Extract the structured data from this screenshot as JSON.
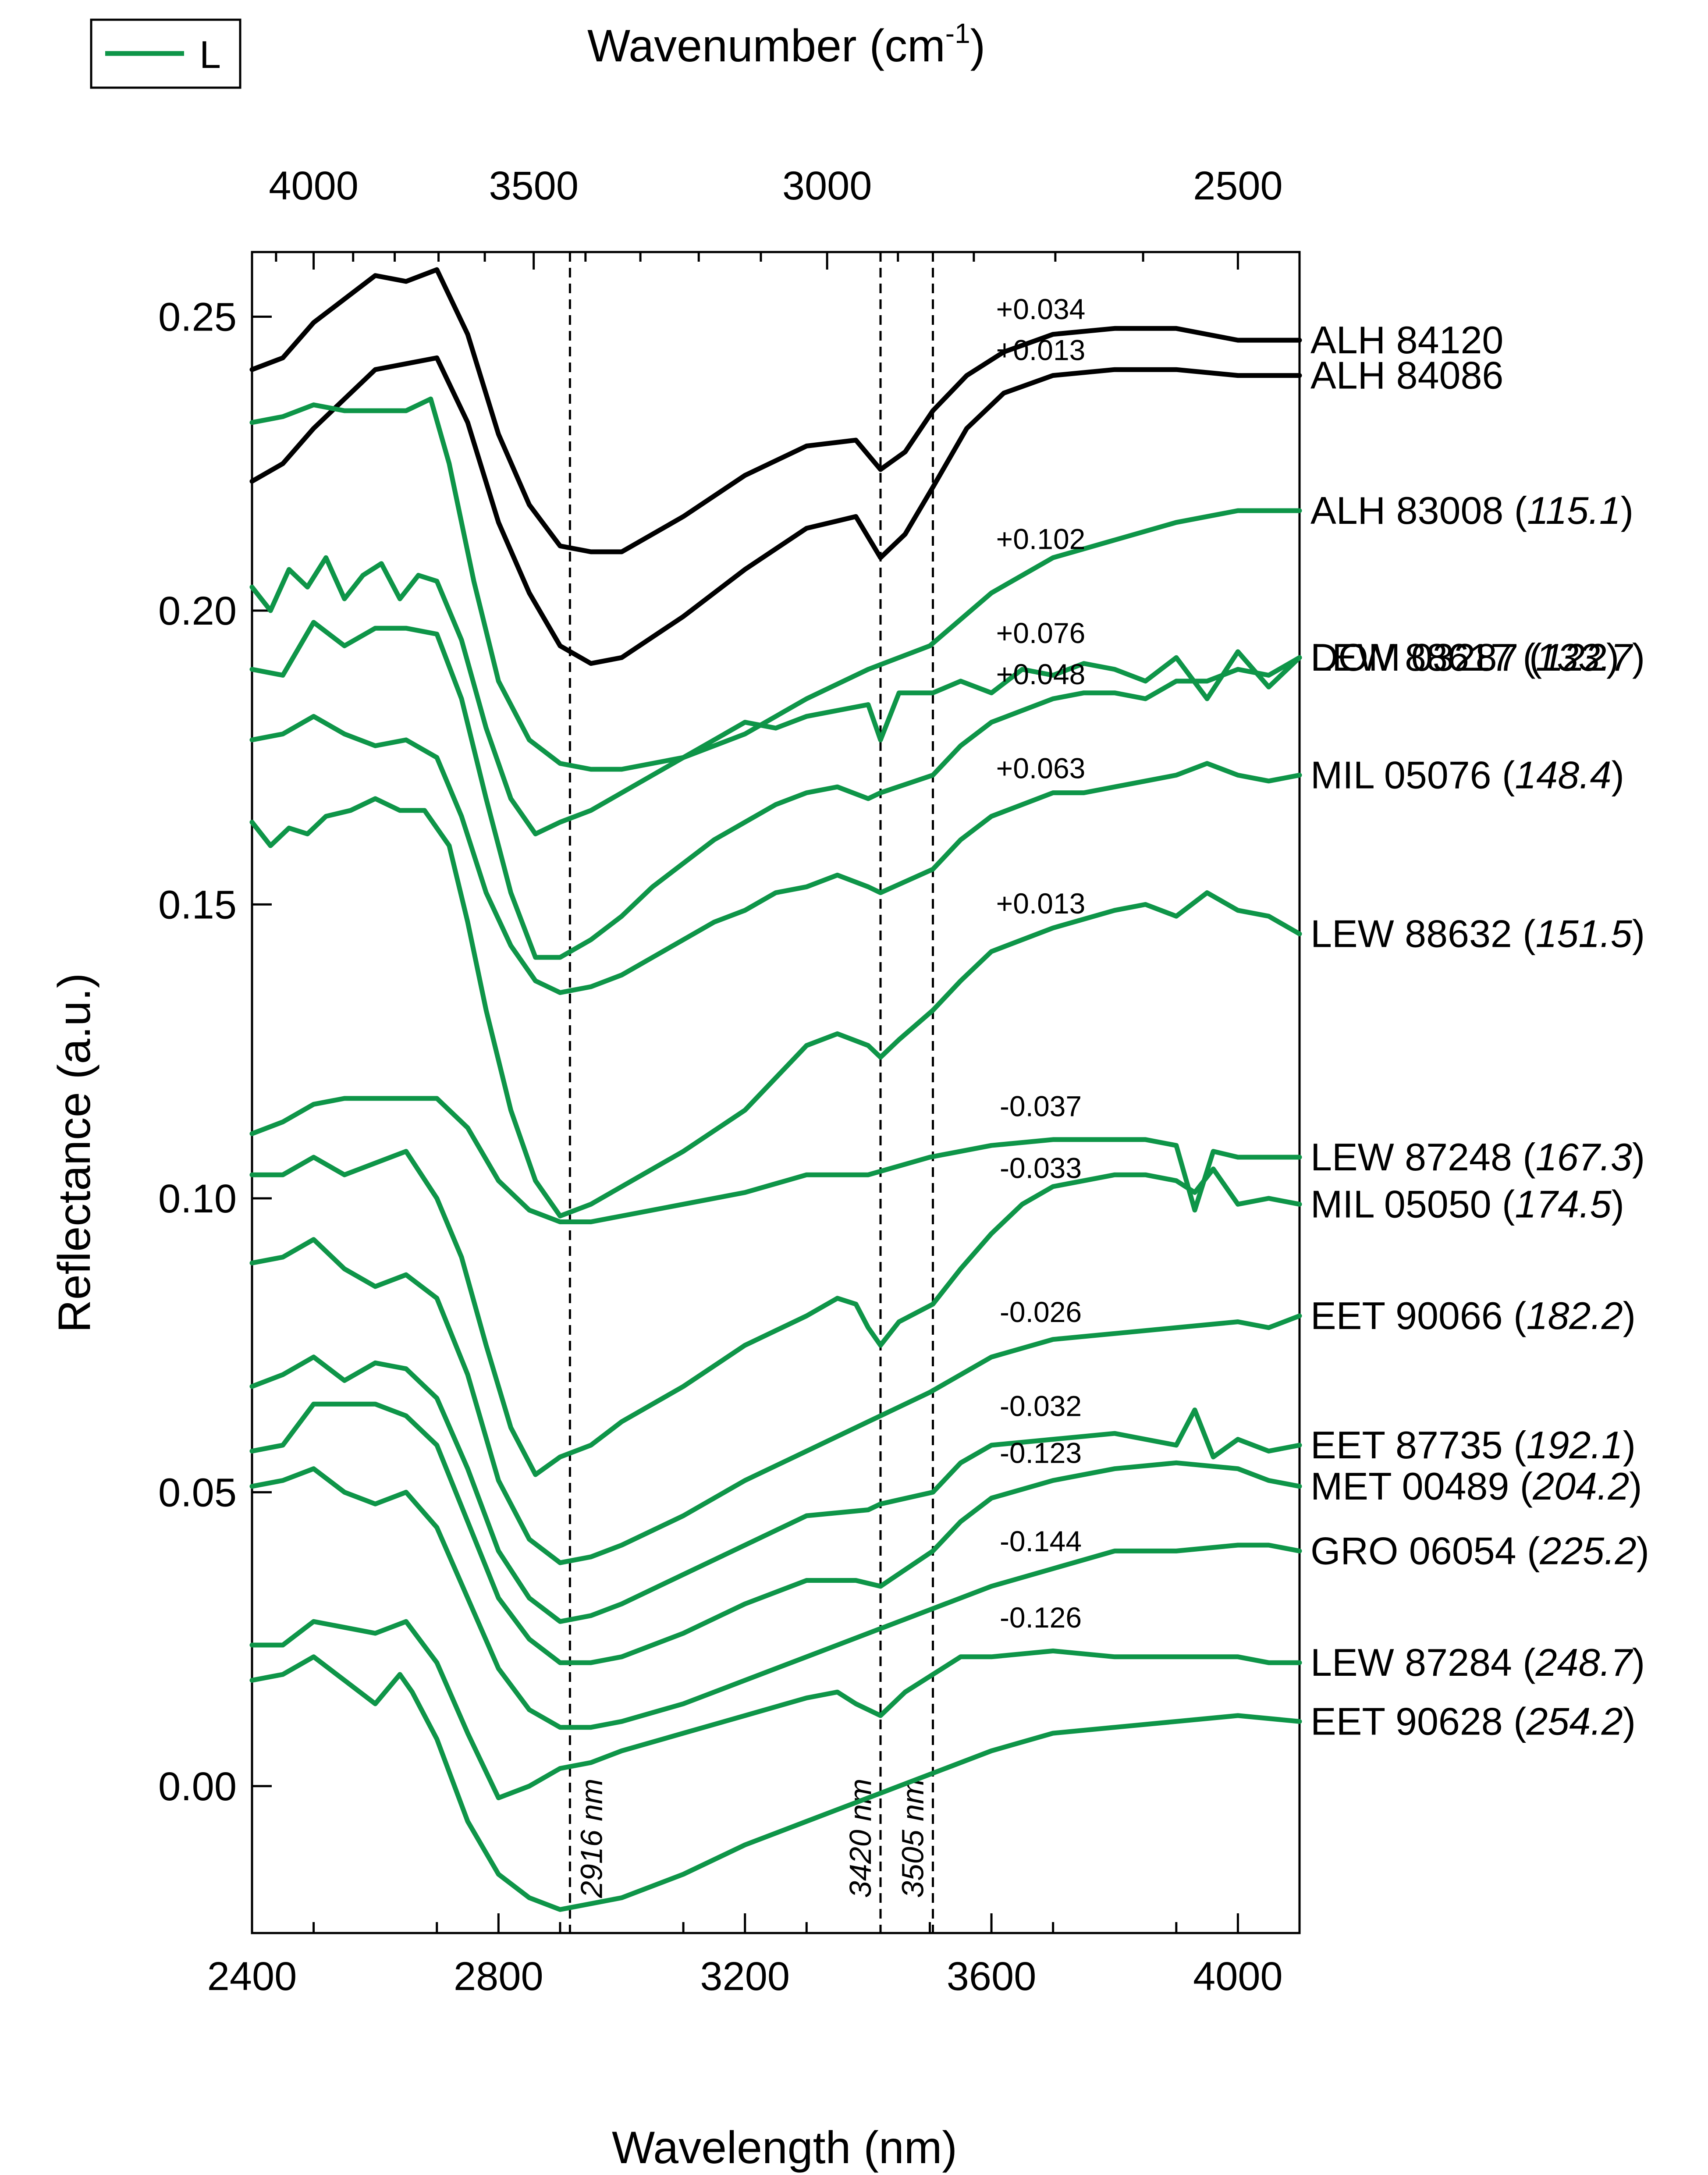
{
  "chart_data": {
    "type": "line",
    "title": "",
    "xlabel": "Wavelength (nm)",
    "ylabel": "Reflectance (a.u.)",
    "top_axis_label": "Wavenumber (cm",
    "top_axis_label_sup": "-1",
    "top_axis_label_end": ")",
    "xlim": [
      2400,
      4100
    ],
    "ylim": [
      -0.025,
      0.261
    ],
    "x_ticks": [
      2400,
      2800,
      3200,
      3600,
      4000
    ],
    "x_tick_labels": [
      "2400",
      "2800",
      "3200",
      "3600",
      "4000"
    ],
    "y_ticks": [
      0.0,
      0.05,
      0.1,
      0.15,
      0.2,
      0.25
    ],
    "y_tick_labels": [
      "0.00",
      "0.05",
      "0.10",
      "0.15",
      "0.20",
      "0.25"
    ],
    "top_ticks": [
      4000,
      3500,
      3000,
      2500
    ],
    "top_tick_labels": [
      "4000",
      "3500",
      "3000",
      "2500"
    ],
    "reference_lines": [
      {
        "x": 2916,
        "label": "2916 nm"
      },
      {
        "x": 3420,
        "label": "3420 nm"
      },
      {
        "x": 3505,
        "label": "3505 nm"
      }
    ],
    "legend": {
      "position": "top-left",
      "entries": [
        {
          "label": "L",
          "color": "#0e9548"
        }
      ]
    },
    "colors": {
      "type_L": "#0e9548",
      "reference": "#000000"
    },
    "series": [
      {
        "name": "ALH 84120",
        "value": "",
        "offset_label": "+0.034",
        "color": "#000000",
        "x": [
          2400,
          2450,
          2500,
          2550,
          2600,
          2650,
          2700,
          2750,
          2800,
          2850,
          2900,
          2950,
          3000,
          3100,
          3200,
          3300,
          3380,
          3420,
          3460,
          3505,
          3560,
          3620,
          3700,
          3800,
          3900,
          4000,
          4100
        ],
        "y": [
          0.241,
          0.243,
          0.249,
          0.253,
          0.257,
          0.256,
          0.258,
          0.247,
          0.23,
          0.218,
          0.211,
          0.21,
          0.21,
          0.216,
          0.223,
          0.228,
          0.229,
          0.224,
          0.227,
          0.234,
          0.24,
          0.244,
          0.247,
          0.248,
          0.248,
          0.246,
          0.246
        ]
      },
      {
        "name": "ALH 84086",
        "value": "",
        "offset_label": "+0.013",
        "color": "#000000",
        "x": [
          2400,
          2450,
          2500,
          2550,
          2600,
          2650,
          2700,
          2750,
          2800,
          2850,
          2900,
          2950,
          3000,
          3100,
          3200,
          3300,
          3380,
          3420,
          3460,
          3505,
          3560,
          3620,
          3700,
          3800,
          3900,
          4000,
          4100
        ],
        "y": [
          0.222,
          0.225,
          0.231,
          0.236,
          0.241,
          0.242,
          0.243,
          0.232,
          0.215,
          0.203,
          0.194,
          0.191,
          0.192,
          0.199,
          0.207,
          0.214,
          0.216,
          0.209,
          0.213,
          0.221,
          0.231,
          0.237,
          0.24,
          0.241,
          0.241,
          0.24,
          0.24
        ]
      },
      {
        "name": "ALH 83008",
        "value": "115.1",
        "offset_label": "+0.102",
        "color": "#0e9548",
        "x": [
          2400,
          2450,
          2500,
          2550,
          2600,
          2650,
          2690,
          2720,
          2760,
          2800,
          2850,
          2900,
          2950,
          3000,
          3100,
          3200,
          3300,
          3400,
          3500,
          3600,
          3700,
          3800,
          3900,
          4000,
          4100
        ],
        "y": [
          0.232,
          0.233,
          0.235,
          0.234,
          0.234,
          0.234,
          0.236,
          0.225,
          0.205,
          0.188,
          0.178,
          0.174,
          0.173,
          0.173,
          0.175,
          0.179,
          0.185,
          0.19,
          0.194,
          0.203,
          0.209,
          0.212,
          0.215,
          0.217,
          0.217
        ]
      },
      {
        "name": "DOM 03287",
        "value": "122",
        "offset_label": "+0.076",
        "color": "#0e9548",
        "x": [
          2400,
          2430,
          2460,
          2490,
          2520,
          2550,
          2580,
          2610,
          2640,
          2670,
          2700,
          2740,
          2780,
          2820,
          2860,
          2900,
          2950,
          3000,
          3050,
          3100,
          3150,
          3200,
          3250,
          3300,
          3350,
          3400,
          3420,
          3450,
          3505,
          3550,
          3600,
          3650,
          3700,
          3750,
          3800,
          3850,
          3900,
          3950,
          4000,
          4050,
          4100
        ],
        "y": [
          0.204,
          0.2,
          0.207,
          0.204,
          0.209,
          0.202,
          0.206,
          0.208,
          0.202,
          0.206,
          0.205,
          0.195,
          0.18,
          0.168,
          0.162,
          0.164,
          0.166,
          0.169,
          0.172,
          0.175,
          0.178,
          0.181,
          0.18,
          0.182,
          0.183,
          0.184,
          0.178,
          0.186,
          0.186,
          0.188,
          0.186,
          0.19,
          0.189,
          0.191,
          0.19,
          0.188,
          0.192,
          0.185,
          0.193,
          0.187,
          0.192
        ]
      },
      {
        "name": "LEW 88617",
        "value": "133.7",
        "offset_label": "+0.048",
        "color": "#0e9548",
        "x": [
          2400,
          2450,
          2500,
          2550,
          2600,
          2650,
          2700,
          2740,
          2780,
          2820,
          2860,
          2900,
          2950,
          3000,
          3050,
          3100,
          3150,
          3200,
          3250,
          3300,
          3350,
          3400,
          3420,
          3505,
          3550,
          3600,
          3650,
          3700,
          3750,
          3800,
          3850,
          3900,
          3950,
          4000,
          4050,
          4100
        ],
        "y": [
          0.19,
          0.189,
          0.198,
          0.194,
          0.197,
          0.197,
          0.196,
          0.185,
          0.168,
          0.152,
          0.141,
          0.141,
          0.144,
          0.148,
          0.153,
          0.157,
          0.161,
          0.164,
          0.167,
          0.169,
          0.17,
          0.168,
          0.169,
          0.172,
          0.177,
          0.181,
          0.183,
          0.185,
          0.186,
          0.186,
          0.185,
          0.188,
          0.188,
          0.19,
          0.189,
          0.192
        ]
      },
      {
        "name": "MIL 05076",
        "value": "148.4",
        "offset_label": "+0.063",
        "color": "#0e9548",
        "x": [
          2400,
          2450,
          2500,
          2550,
          2600,
          2650,
          2700,
          2740,
          2780,
          2820,
          2860,
          2900,
          2950,
          3000,
          3050,
          3100,
          3150,
          3200,
          3250,
          3300,
          3350,
          3400,
          3420,
          3505,
          3550,
          3600,
          3650,
          3700,
          3750,
          3800,
          3850,
          3900,
          3950,
          4000,
          4050,
          4100
        ],
        "y": [
          0.178,
          0.179,
          0.182,
          0.179,
          0.177,
          0.178,
          0.175,
          0.165,
          0.152,
          0.143,
          0.137,
          0.135,
          0.136,
          0.138,
          0.141,
          0.144,
          0.147,
          0.149,
          0.152,
          0.153,
          0.155,
          0.153,
          0.152,
          0.156,
          0.161,
          0.165,
          0.167,
          0.169,
          0.169,
          0.17,
          0.171,
          0.172,
          0.174,
          0.172,
          0.171,
          0.172
        ]
      },
      {
        "name": "LEW 88632",
        "value": "151.5",
        "offset_label": "+0.013",
        "color": "#0e9548",
        "x": [
          2400,
          2430,
          2460,
          2490,
          2520,
          2560,
          2600,
          2640,
          2680,
          2720,
          2750,
          2780,
          2820,
          2860,
          2900,
          2950,
          3000,
          3100,
          3200,
          3300,
          3350,
          3400,
          3420,
          3450,
          3505,
          3550,
          3600,
          3700,
          3800,
          3850,
          3900,
          3950,
          4000,
          4050,
          4100
        ],
        "y": [
          0.164,
          0.16,
          0.163,
          0.162,
          0.165,
          0.166,
          0.168,
          0.166,
          0.166,
          0.16,
          0.147,
          0.132,
          0.115,
          0.103,
          0.097,
          0.099,
          0.102,
          0.108,
          0.115,
          0.126,
          0.128,
          0.126,
          0.124,
          0.127,
          0.132,
          0.137,
          0.142,
          0.146,
          0.149,
          0.15,
          0.148,
          0.152,
          0.149,
          0.148,
          0.145
        ]
      },
      {
        "name": "LEW 87248",
        "value": "167.3",
        "offset_label": "-0.037",
        "color": "#0e9548",
        "x": [
          2400,
          2450,
          2500,
          2550,
          2600,
          2650,
          2700,
          2750,
          2800,
          2850,
          2900,
          2950,
          3000,
          3100,
          3200,
          3300,
          3400,
          3500,
          3600,
          3700,
          3800,
          3850,
          3900,
          3930,
          3960,
          4000,
          4050,
          4100
        ],
        "y": [
          0.111,
          0.113,
          0.116,
          0.117,
          0.117,
          0.117,
          0.117,
          0.112,
          0.103,
          0.098,
          0.096,
          0.096,
          0.097,
          0.099,
          0.101,
          0.104,
          0.104,
          0.107,
          0.109,
          0.11,
          0.11,
          0.11,
          0.109,
          0.098,
          0.108,
          0.107,
          0.107,
          0.107
        ]
      },
      {
        "name": "MIL 05050",
        "value": "174.5",
        "offset_label": "-0.033",
        "color": "#0e9548",
        "x": [
          2400,
          2450,
          2500,
          2550,
          2600,
          2650,
          2700,
          2740,
          2780,
          2820,
          2860,
          2900,
          2950,
          3000,
          3100,
          3200,
          3300,
          3350,
          3380,
          3400,
          3420,
          3450,
          3505,
          3550,
          3600,
          3650,
          3700,
          3800,
          3850,
          3900,
          3930,
          3960,
          4000,
          4050,
          4100
        ],
        "y": [
          0.104,
          0.104,
          0.107,
          0.104,
          0.106,
          0.108,
          0.1,
          0.09,
          0.075,
          0.061,
          0.053,
          0.056,
          0.058,
          0.062,
          0.068,
          0.075,
          0.08,
          0.083,
          0.082,
          0.078,
          0.075,
          0.079,
          0.082,
          0.088,
          0.094,
          0.099,
          0.102,
          0.104,
          0.104,
          0.103,
          0.101,
          0.105,
          0.099,
          0.1,
          0.099
        ]
      },
      {
        "name": "EET 90066",
        "value": "182.2",
        "offset_label": "-0.026",
        "color": "#0e9548",
        "x": [
          2400,
          2450,
          2500,
          2550,
          2600,
          2650,
          2700,
          2750,
          2800,
          2850,
          2900,
          2950,
          3000,
          3100,
          3200,
          3300,
          3400,
          3500,
          3600,
          3700,
          3800,
          3900,
          4000,
          4050,
          4100
        ],
        "y": [
          0.089,
          0.09,
          0.093,
          0.088,
          0.085,
          0.087,
          0.083,
          0.07,
          0.052,
          0.042,
          0.038,
          0.039,
          0.041,
          0.046,
          0.052,
          0.057,
          0.062,
          0.067,
          0.073,
          0.076,
          0.077,
          0.078,
          0.079,
          0.078,
          0.08
        ]
      },
      {
        "name": "EET 87735",
        "value": "192.1",
        "offset_label": "-0.032",
        "color": "#0e9548",
        "x": [
          2400,
          2450,
          2500,
          2550,
          2600,
          2650,
          2700,
          2750,
          2800,
          2850,
          2900,
          2950,
          3000,
          3100,
          3200,
          3300,
          3400,
          3420,
          3505,
          3550,
          3600,
          3700,
          3800,
          3850,
          3900,
          3930,
          3960,
          4000,
          4050,
          4100
        ],
        "y": [
          0.068,
          0.07,
          0.073,
          0.069,
          0.072,
          0.071,
          0.066,
          0.054,
          0.04,
          0.032,
          0.028,
          0.029,
          0.031,
          0.036,
          0.041,
          0.046,
          0.047,
          0.048,
          0.05,
          0.055,
          0.058,
          0.059,
          0.06,
          0.059,
          0.058,
          0.064,
          0.056,
          0.059,
          0.057,
          0.058
        ]
      },
      {
        "name": "MET 00489",
        "value": "204.2",
        "offset_label": "-0.123",
        "color": "#0e9548",
        "x": [
          2400,
          2450,
          2500,
          2550,
          2600,
          2650,
          2700,
          2750,
          2800,
          2850,
          2900,
          2950,
          3000,
          3100,
          3200,
          3300,
          3380,
          3420,
          3505,
          3550,
          3600,
          3700,
          3800,
          3900,
          4000,
          4050,
          4100
        ],
        "y": [
          0.057,
          0.058,
          0.065,
          0.065,
          0.065,
          0.063,
          0.058,
          0.045,
          0.032,
          0.025,
          0.021,
          0.021,
          0.022,
          0.026,
          0.031,
          0.035,
          0.035,
          0.034,
          0.04,
          0.045,
          0.049,
          0.052,
          0.054,
          0.055,
          0.054,
          0.052,
          0.051
        ]
      },
      {
        "name": "GRO 06054",
        "value": "225.2",
        "offset_label": "-0.144",
        "color": "#0e9548",
        "x": [
          2400,
          2450,
          2500,
          2550,
          2600,
          2650,
          2700,
          2750,
          2800,
          2850,
          2900,
          2950,
          3000,
          3100,
          3200,
          3300,
          3400,
          3500,
          3600,
          3700,
          3800,
          3900,
          4000,
          4050,
          4100
        ],
        "y": [
          0.051,
          0.052,
          0.054,
          0.05,
          0.048,
          0.05,
          0.044,
          0.032,
          0.02,
          0.013,
          0.01,
          0.01,
          0.011,
          0.014,
          0.018,
          0.022,
          0.026,
          0.03,
          0.034,
          0.037,
          0.04,
          0.04,
          0.041,
          0.041,
          0.04
        ]
      },
      {
        "name": "LEW 87284",
        "value": "248.7",
        "offset_label": "-0.126",
        "color": "#0e9548",
        "x": [
          2400,
          2450,
          2500,
          2550,
          2600,
          2650,
          2700,
          2750,
          2800,
          2850,
          2900,
          2950,
          3000,
          3100,
          3200,
          3300,
          3350,
          3380,
          3420,
          3460,
          3505,
          3550,
          3600,
          3700,
          3800,
          3900,
          4000,
          4050,
          4100
        ],
        "y": [
          0.024,
          0.024,
          0.028,
          0.027,
          0.026,
          0.028,
          0.021,
          0.009,
          -0.002,
          0.0,
          0.003,
          0.004,
          0.006,
          0.009,
          0.012,
          0.015,
          0.016,
          0.014,
          0.012,
          0.016,
          0.019,
          0.022,
          0.022,
          0.023,
          0.022,
          0.022,
          0.022,
          0.021,
          0.021
        ]
      },
      {
        "name": "EET 90628",
        "value": "254.2",
        "offset_label": "",
        "color": "#0e9548",
        "x": [
          2400,
          2450,
          2500,
          2550,
          2600,
          2640,
          2660,
          2700,
          2750,
          2800,
          2850,
          2900,
          2950,
          3000,
          3100,
          3200,
          3300,
          3400,
          3500,
          3600,
          3700,
          3800,
          3900,
          4000,
          4100
        ],
        "y": [
          0.018,
          0.019,
          0.022,
          0.018,
          0.014,
          0.019,
          0.016,
          0.008,
          -0.006,
          -0.015,
          -0.019,
          -0.021,
          -0.02,
          -0.019,
          -0.015,
          -0.01,
          -0.006,
          -0.002,
          0.002,
          0.006,
          0.009,
          0.01,
          0.011,
          0.012,
          0.011
        ]
      }
    ]
  }
}
